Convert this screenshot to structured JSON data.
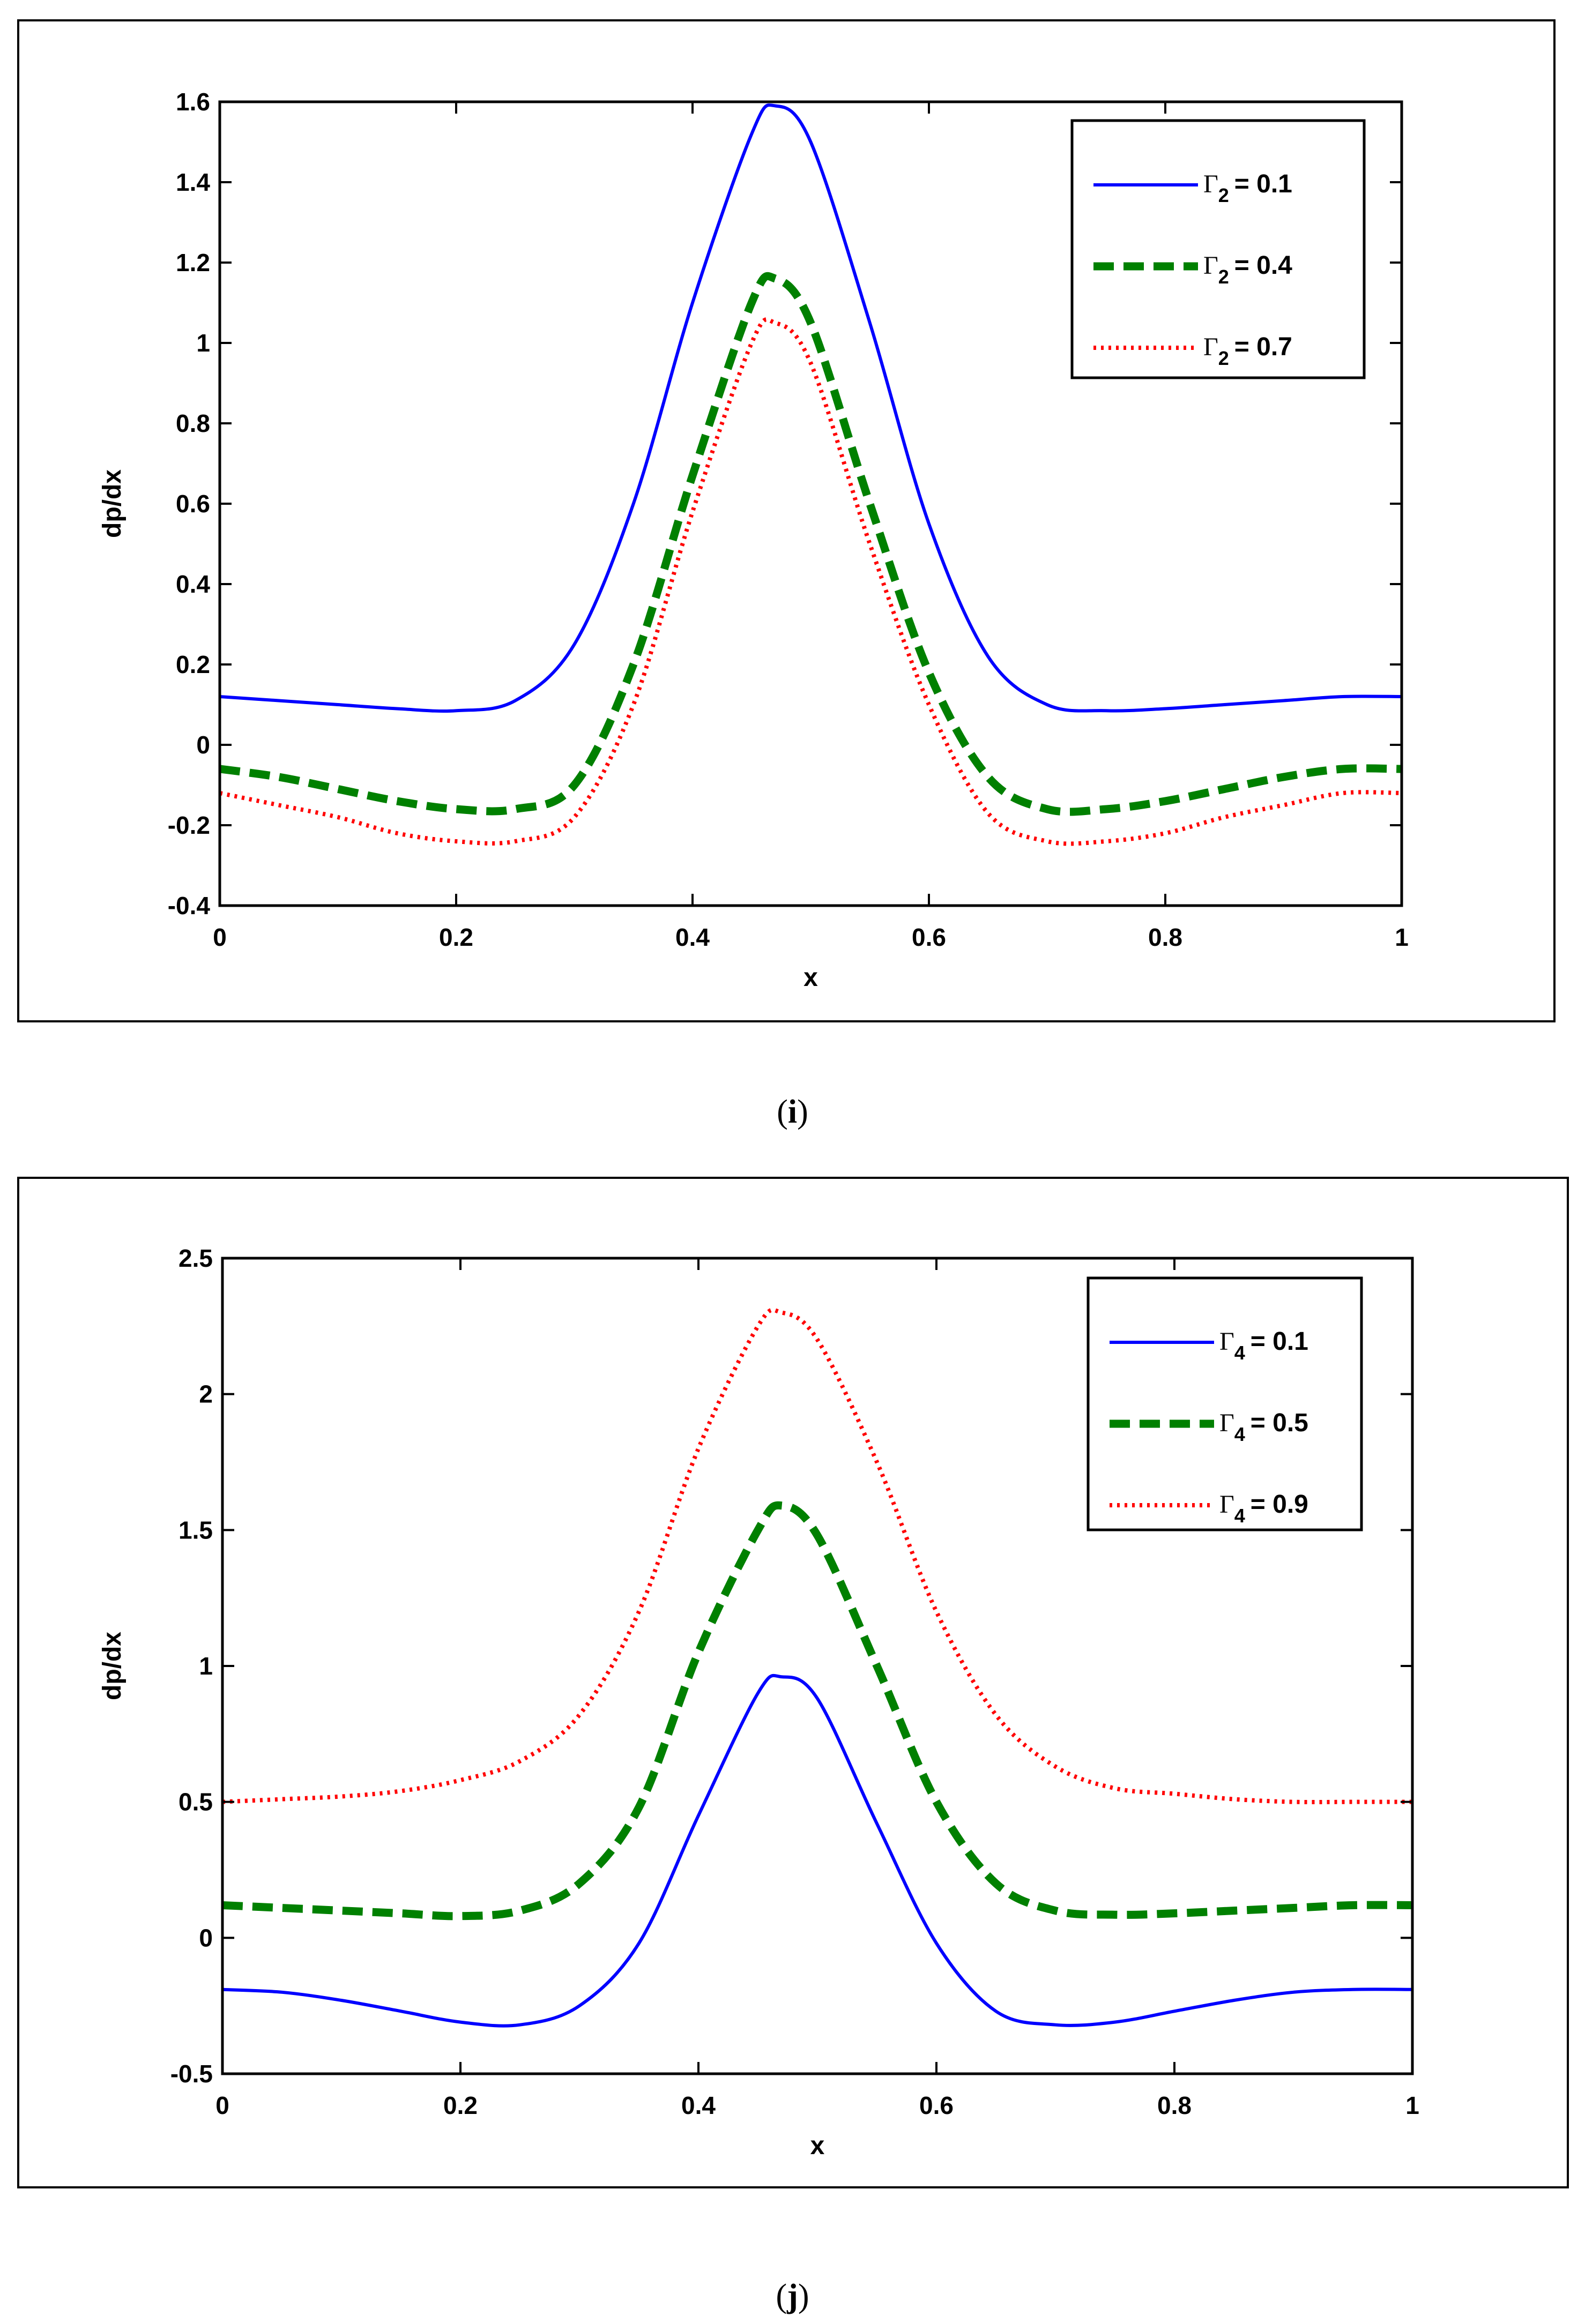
{
  "chart_data": [
    {
      "id": "i",
      "type": "line",
      "caption": "i",
      "title": "",
      "xlabel": "x",
      "ylabel": "dp/dx",
      "xlim": [
        0,
        1
      ],
      "ylim": [
        -0.4,
        1.6
      ],
      "xticks": [
        0,
        0.2,
        0.4,
        0.6,
        0.8,
        1
      ],
      "xtick_labels": [
        "0",
        "0.2",
        "0.4",
        "0.6",
        "0.8",
        "1"
      ],
      "yticks": [
        -0.4,
        -0.2,
        0,
        0.2,
        0.4,
        0.6,
        0.8,
        1,
        1.2,
        1.4,
        1.6
      ],
      "ytick_labels": [
        "-0.4",
        "-0.2",
        "0",
        "0.2",
        "0.4",
        "0.6",
        "0.8",
        "1",
        "1.2",
        "1.4",
        "1.6"
      ],
      "legend_position": "top-right",
      "x": [
        0,
        0.05,
        0.1,
        0.15,
        0.2,
        0.25,
        0.3,
        0.35,
        0.4,
        0.45,
        0.47,
        0.5,
        0.55,
        0.6,
        0.65,
        0.7,
        0.75,
        0.8,
        0.85,
        0.9,
        0.95,
        1
      ],
      "series": [
        {
          "name": "Γ",
          "subscript": "2",
          "value_text": "= 0.1",
          "color": "#0000ff",
          "style": "solid",
          "values": [
            0.12,
            0.11,
            0.1,
            0.09,
            0.085,
            0.11,
            0.25,
            0.6,
            1.1,
            1.52,
            1.59,
            1.5,
            1.05,
            0.55,
            0.22,
            0.1,
            0.085,
            0.09,
            0.1,
            0.11,
            0.12,
            0.12
          ]
        },
        {
          "name": "Γ",
          "subscript": "2",
          "value_text": "= 0.4",
          "color": "#008000",
          "style": "dashed",
          "values": [
            -0.06,
            -0.08,
            -0.11,
            -0.14,
            -0.16,
            -0.16,
            -0.1,
            0.2,
            0.67,
            1.1,
            1.16,
            1.05,
            0.6,
            0.18,
            -0.08,
            -0.16,
            -0.16,
            -0.14,
            -0.11,
            -0.08,
            -0.06,
            -0.06
          ]
        },
        {
          "name": "Γ",
          "subscript": "2",
          "value_text": "= 0.7",
          "color": "#ff0000",
          "style": "dotted",
          "values": [
            -0.12,
            -0.15,
            -0.18,
            -0.22,
            -0.24,
            -0.24,
            -0.18,
            0.1,
            0.58,
            1.0,
            1.05,
            0.95,
            0.5,
            0.1,
            -0.17,
            -0.24,
            -0.24,
            -0.22,
            -0.18,
            -0.15,
            -0.12,
            -0.12
          ]
        }
      ]
    },
    {
      "id": "j",
      "type": "line",
      "caption": "j",
      "title": "",
      "xlabel": "x",
      "ylabel": "dp/dx",
      "xlim": [
        0,
        1
      ],
      "ylim": [
        -0.5,
        2.5
      ],
      "xticks": [
        0,
        0.2,
        0.4,
        0.6,
        0.8,
        1
      ],
      "xtick_labels": [
        "0",
        "0.2",
        "0.4",
        "0.6",
        "0.8",
        "1"
      ],
      "yticks": [
        -0.5,
        0,
        0.5,
        1,
        1.5,
        2,
        2.5
      ],
      "ytick_labels": [
        "-0.5",
        "0",
        "0.5",
        "1",
        "1.5",
        "2",
        "2.5"
      ],
      "legend_position": "top-right",
      "x": [
        0,
        0.05,
        0.1,
        0.15,
        0.2,
        0.25,
        0.3,
        0.35,
        0.4,
        0.45,
        0.47,
        0.5,
        0.55,
        0.6,
        0.65,
        0.7,
        0.75,
        0.8,
        0.85,
        0.9,
        0.95,
        1
      ],
      "series": [
        {
          "name": "Γ",
          "subscript": "4",
          "value_text": "= 0.1",
          "color": "#0000ff",
          "style": "solid",
          "values": [
            -0.19,
            -0.2,
            -0.23,
            -0.27,
            -0.31,
            -0.32,
            -0.25,
            -0.02,
            0.45,
            0.9,
            0.96,
            0.88,
            0.42,
            -0.02,
            -0.27,
            -0.32,
            -0.31,
            -0.27,
            -0.23,
            -0.2,
            -0.19,
            -0.19
          ]
        },
        {
          "name": "Γ",
          "subscript": "4",
          "value_text": "= 0.5",
          "color": "#008000",
          "style": "dashed",
          "values": [
            0.12,
            0.11,
            0.1,
            0.09,
            0.08,
            0.1,
            0.2,
            0.48,
            1.05,
            1.5,
            1.59,
            1.48,
            1.0,
            0.5,
            0.2,
            0.1,
            0.085,
            0.09,
            0.1,
            0.11,
            0.12,
            0.12
          ]
        },
        {
          "name": "Γ",
          "subscript": "4",
          "value_text": "= 0.9",
          "color": "#ff0000",
          "style": "dotted",
          "values": [
            0.5,
            0.51,
            0.52,
            0.54,
            0.58,
            0.65,
            0.82,
            1.2,
            1.8,
            2.25,
            2.3,
            2.2,
            1.75,
            1.2,
            0.82,
            0.63,
            0.55,
            0.53,
            0.51,
            0.5,
            0.5,
            0.5
          ]
        }
      ]
    }
  ]
}
